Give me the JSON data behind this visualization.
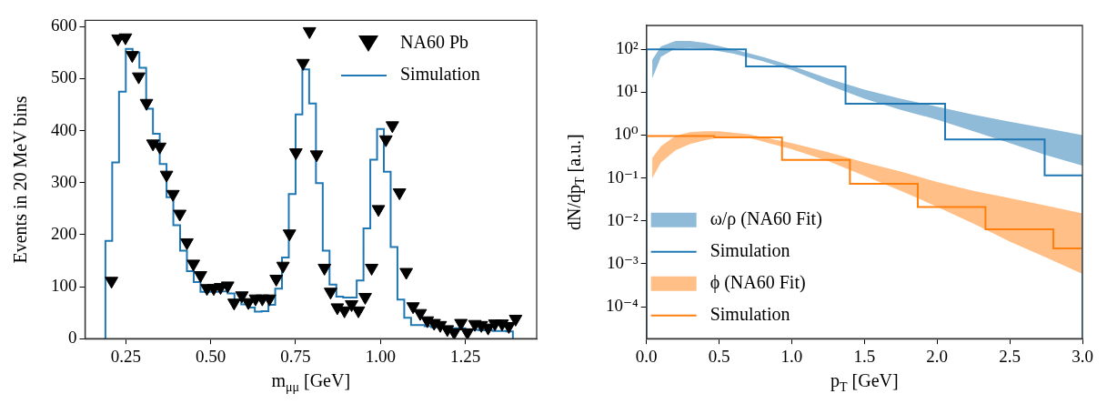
{
  "chart_data": [
    {
      "type": "histogram",
      "xlabel": "m$_{μμ}$ [GeV]",
      "ylabel": "Events in 20 MeV bins",
      "xlim": [
        0.13,
        1.46
      ],
      "ylim": [
        0,
        612
      ],
      "xticks": [
        0.25,
        {
          "value": 0.5,
          "label": "0.50"
        },
        0.75,
        {
          "value": 1.0,
          "label": "1.00"
        },
        1.25
      ],
      "yticks": [
        0,
        100,
        200,
        300,
        400,
        500,
        600
      ],
      "legend": "top right",
      "series": [
        {
          "name": "NA60 Pb",
          "type": "scatter",
          "marker": "triangle",
          "color": "#000000",
          "x": [
            0.208,
            0.227,
            0.249,
            0.269,
            0.288,
            0.311,
            0.33,
            0.35,
            0.37,
            0.389,
            0.409,
            0.43,
            0.449,
            0.47,
            0.489,
            0.509,
            0.529,
            0.55,
            0.569,
            0.592,
            0.611,
            0.632,
            0.652,
            0.673,
            0.693,
            0.713,
            0.732,
            0.751,
            0.772,
            0.791,
            0.812,
            0.835,
            0.853,
            0.873,
            0.894,
            0.915,
            0.935,
            0.955,
            0.974,
            0.994,
            1.016,
            1.035,
            1.056,
            1.076,
            1.096,
            1.117,
            1.138,
            1.158,
            1.176,
            1.197,
            1.217,
            1.237,
            1.256,
            1.278,
            1.297,
            1.317,
            1.337,
            1.358,
            1.378,
            1.398
          ],
          "values": [
            111,
            577,
            579,
            545,
            504,
            453,
            375,
            369,
            315,
            278,
            240,
            185,
            144,
            122,
            97,
            97,
            99,
            102,
            69,
            83,
            70,
            77,
            77,
            77,
            115,
            140,
            202,
            358,
            530,
            591,
            354,
            136,
            90,
            60,
            54,
            66,
            54,
            80,
            136,
            249,
            383,
            410,
            281,
            128,
            62,
            49,
            35,
            30,
            26,
            18,
            12,
            30,
            12,
            28,
            26,
            21,
            29,
            29,
            24,
            38
          ]
        },
        {
          "name": "Simulation",
          "type": "histogram",
          "color": "#1f77b4",
          "bins": [
            0.19,
            0.21,
            0.23,
            0.25,
            0.27,
            0.29,
            0.31,
            0.33,
            0.35,
            0.37,
            0.39,
            0.41,
            0.43,
            0.45,
            0.47,
            0.49,
            0.51,
            0.53,
            0.55,
            0.57,
            0.59,
            0.61,
            0.63,
            0.65,
            0.67,
            0.69,
            0.71,
            0.73,
            0.75,
            0.77,
            0.79,
            0.81,
            0.83,
            0.85,
            0.87,
            0.89,
            0.91,
            0.93,
            0.95,
            0.97,
            0.99,
            1.01,
            1.03,
            1.05,
            1.07,
            1.09,
            1.11,
            1.13,
            1.15,
            1.17,
            1.19,
            1.21,
            1.23,
            1.25,
            1.27,
            1.29,
            1.31,
            1.33,
            1.35,
            1.37,
            1.39
          ],
          "values": [
            188,
            339,
            475,
            557,
            550,
            521,
            442,
            394,
            336,
            272,
            218,
            169,
            130,
            109,
            90,
            90,
            90,
            91,
            87,
            74,
            66,
            60,
            52,
            53,
            65,
            96,
            156,
            278,
            431,
            518,
            452,
            299,
            169,
            104,
            81,
            79,
            79,
            112,
            212,
            344,
            403,
            321,
            176,
            75,
            40,
            26,
            26,
            24,
            22,
            22,
            21,
            20,
            20,
            18,
            17,
            16,
            16,
            15,
            15,
            14
          ]
        }
      ]
    },
    {
      "type": "histogram",
      "xlabel": "p$_{T}$ [GeV]",
      "ylabel": "dN/dp$_{T}$ [a.u.]",
      "log": "y",
      "xlim": [
        0,
        3
      ],
      "ylim": [
        1.8e-05,
        360
      ],
      "xticks": [
        {
          "value": 0,
          "label": "0.0"
        },
        0.5,
        {
          "value": 1,
          "label": "1.0"
        },
        1.5,
        {
          "value": 2,
          "label": "2.0"
        },
        2.5,
        {
          "value": 3,
          "label": "3.0"
        }
      ],
      "yticks": [
        {
          "value": 0.0001,
          "label": "10⁻⁴"
        },
        {
          "value": 0.001,
          "label": "10⁻³"
        },
        {
          "value": 0.01,
          "label": "10⁻²"
        },
        {
          "value": 0.1,
          "label": "10⁻¹"
        },
        {
          "value": 1,
          "label": "10⁰"
        },
        {
          "value": 10,
          "label": "10¹"
        },
        {
          "value": 100,
          "label": "10²"
        }
      ],
      "legend": "bottom left",
      "series": [
        {
          "name": "ω/ρ (NA60 Fit)",
          "type": "area",
          "color": "#8fbbd9",
          "x": [
            0.04,
            0.1,
            0.2,
            0.3,
            0.4,
            0.6,
            0.8,
            1.0,
            1.25,
            1.5,
            1.75,
            2.0,
            2.25,
            2.5,
            2.75,
            3.0
          ],
          "values": [
            null,
            null,
            null,
            null,
            null,
            null,
            null,
            null,
            null,
            null,
            null,
            null,
            null,
            null,
            null,
            null
          ],
          "lower": [
            21,
            67,
            105,
            108,
            103,
            79,
            53,
            33,
            14.7,
            7.1,
            3.9,
            2.3,
            1.23,
            0.65,
            0.34,
            0.196
          ],
          "upper": [
            57,
            117,
            156,
            157,
            142,
            100,
            67,
            41.5,
            21,
            11.5,
            7.1,
            4.6,
            3.0,
            2.05,
            1.45,
            1.0
          ]
        },
        {
          "name": "Simulation",
          "type": "histogram",
          "color": "#1f77b4",
          "bins": [
            0,
            0.685,
            1.37,
            2.055,
            2.74,
            3.0
          ],
          "values": [
            100,
            40,
            5.4,
            0.79,
            0.115
          ]
        },
        {
          "name": "ϕ (NA60 Fit)",
          "type": "area",
          "color": "#ffbf86",
          "x": [
            0.04,
            0.1,
            0.2,
            0.3,
            0.4,
            0.5,
            0.7,
            1.0,
            1.25,
            1.5,
            1.75,
            2.0,
            2.25,
            2.5,
            2.75,
            3.0
          ],
          "values": [
            null,
            null,
            null,
            null,
            null,
            null,
            null,
            null,
            null,
            null,
            null,
            null,
            null,
            null,
            null,
            null
          ],
          "lower": [
            0.098,
            0.23,
            0.44,
            0.62,
            0.76,
            0.87,
            0.87,
            0.47,
            0.25,
            0.112,
            0.05,
            0.0215,
            0.0087,
            0.0033,
            0.0014,
            0.00058
          ],
          "upper": [
            0.29,
            0.55,
            0.97,
            1.17,
            1.23,
            1.23,
            1.05,
            0.65,
            0.4,
            0.23,
            0.142,
            0.081,
            0.05,
            0.034,
            0.0226,
            0.015
          ]
        },
        {
          "name": "Simulation",
          "type": "histogram",
          "color": "#ff7f0e",
          "bins": [
            0,
            0.467,
            0.933,
            1.4,
            1.867,
            2.333,
            2.8,
            3.0
          ],
          "values": [
            0.95,
            0.89,
            0.265,
            0.073,
            0.021,
            0.0064,
            0.0023
          ]
        }
      ]
    }
  ]
}
